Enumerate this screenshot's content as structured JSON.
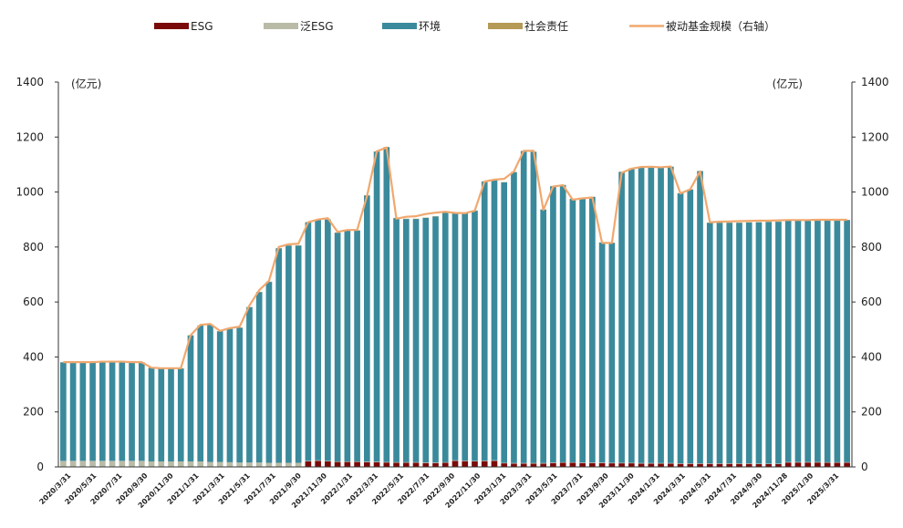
{
  "chart_data": {
    "type": "bar",
    "stacked": true,
    "legend_position": "top",
    "grid": false,
    "colors": {
      "ESG": "#7a0a0a",
      "泛ESG": "#b9bba7",
      "环境": "#3a8a9c",
      "社会责任": "#b59a55",
      "被动基金规模（右轴）": "#f0a86e"
    },
    "y_left": {
      "unit": "(亿元)",
      "range": [
        0,
        1400
      ],
      "ticks": [
        "0",
        "200",
        "400",
        "600",
        "800",
        "1000",
        "1200",
        "1400"
      ]
    },
    "y_right": {
      "unit": "(亿元)",
      "range": [
        0,
        1400
      ],
      "ticks": [
        "0",
        "200",
        "400",
        "600",
        "800",
        "1000",
        "1200",
        "1400"
      ]
    },
    "x_tick_labels": [
      "2020/3/31",
      "2020/5/31",
      "2020/7/31",
      "2020/9/30",
      "2020/11/30",
      "2021/1/31",
      "2021/3/31",
      "2021/5/31",
      "2021/7/31",
      "2021/9/30",
      "2021/11/30",
      "2022/1/31",
      "2022/3/31",
      "2022/5/31",
      "2022/7/31",
      "2022/9/30",
      "2022/11/30",
      "2023/1/31",
      "2023/3/31",
      "2023/5/31",
      "2023/7/31",
      "2023/9/30",
      "2023/11/30",
      "2024/1/31",
      "2024/3/31",
      "2024/5/31",
      "2024/7/31",
      "2024/9/30",
      "2024/11/28",
      "2025/1/30",
      "2025/3/31"
    ],
    "legend": [
      {
        "name": "ESG",
        "kind": "bar",
        "color": "#7a0a0a"
      },
      {
        "name": "泛ESG",
        "kind": "bar",
        "color": "#b9bba7"
      },
      {
        "name": "环境",
        "kind": "bar",
        "color": "#3a8a9c"
      },
      {
        "name": "社会责任",
        "kind": "bar",
        "color": "#b59a55"
      },
      {
        "name": "被动基金规模（右轴）",
        "kind": "line",
        "color": "#f0a86e"
      }
    ],
    "series": [
      {
        "name": "ESG",
        "values": [
          0,
          0,
          0,
          0,
          0,
          0,
          0,
          0,
          0,
          0,
          0,
          0,
          0,
          0,
          0,
          0,
          0,
          0,
          0,
          0,
          0,
          0,
          0,
          0,
          0,
          20,
          22,
          20,
          18,
          18,
          18,
          17,
          17,
          16,
          15,
          15,
          15,
          14,
          14,
          15,
          22,
          21,
          20,
          21,
          22,
          13,
          12,
          12,
          12,
          12,
          14,
          15,
          15,
          14,
          14,
          14,
          13,
          13,
          13,
          12,
          12,
          12,
          12,
          11,
          11,
          11,
          11,
          11,
          11,
          11,
          11,
          10,
          10,
          10,
          16,
          16,
          16,
          16,
          15,
          15,
          15
        ]
      },
      {
        "name": "泛ESG",
        "values": [
          22,
          22,
          22,
          22,
          22,
          22,
          22,
          22,
          22,
          20,
          20,
          20,
          20,
          20,
          20,
          18,
          18,
          17,
          16,
          16,
          16,
          15,
          15,
          15,
          15,
          2,
          2,
          2,
          2,
          2,
          2,
          2,
          2,
          2,
          2,
          2,
          2,
          2,
          2,
          2,
          2,
          2,
          2,
          2,
          2,
          2,
          2,
          2,
          2,
          2,
          2,
          2,
          2,
          2,
          2,
          2,
          2,
          2,
          2,
          2,
          2,
          2,
          2,
          2,
          2,
          2,
          2,
          2,
          2,
          2,
          2,
          2,
          2,
          2,
          2,
          2,
          2,
          2,
          2,
          2,
          2
        ]
      },
      {
        "name": "环境",
        "values": [
          358,
          358,
          358,
          358,
          360,
          360,
          360,
          358,
          358,
          340,
          338,
          338,
          338,
          458,
          494,
          500,
          475,
          485,
          490,
          565,
          620,
          658,
          780,
          790,
          790,
          868,
          875,
          878,
          832,
          840,
          840,
          968,
          1128,
          1145,
          888,
          885,
          885,
          890,
          895,
          910,
          900,
          900,
          910,
          1015,
          1020,
          1020,
          1058,
          1135,
          1132,
          922,
          1005,
          1008,
          958,
          962,
          966,
          800,
          800,
          1058,
          1070,
          1076,
          1076,
          1075,
          1078,
          982,
          996,
          1063,
          875,
          875,
          875,
          875,
          876,
          878,
          879,
          880,
          880,
          880,
          880,
          881,
          881,
          881,
          881
        ]
      },
      {
        "name": "社会责任",
        "values": [
          1,
          1,
          1,
          1,
          1,
          1,
          1,
          1,
          1,
          1,
          1,
          1,
          1,
          1,
          1,
          1,
          1,
          1,
          1,
          1,
          1,
          1,
          1,
          1,
          1,
          1,
          1,
          1,
          1,
          1,
          1,
          1,
          1,
          1,
          1,
          1,
          1,
          1,
          1,
          1,
          1,
          1,
          1,
          1,
          1,
          1,
          1,
          1,
          1,
          1,
          1,
          1,
          1,
          1,
          1,
          1,
          1,
          1,
          1,
          1,
          1,
          1,
          1,
          1,
          1,
          1,
          1,
          1,
          1,
          1,
          1,
          1,
          1,
          1,
          1,
          1,
          1,
          1,
          1,
          1,
          1
        ]
      },
      {
        "name": "被动基金规模（右轴）",
        "values": [
          381,
          381,
          381,
          381,
          383,
          383,
          383,
          381,
          381,
          361,
          359,
          359,
          359,
          479,
          517,
          520,
          495,
          505,
          510,
          587,
          643,
          677,
          800,
          810,
          812,
          890,
          900,
          905,
          855,
          862,
          862,
          985,
          1148,
          1162,
          903,
          910,
          912,
          920,
          925,
          928,
          924,
          923,
          932,
          1038,
          1045,
          1048,
          1075,
          1150,
          1150,
          935,
          1020,
          1025,
          972,
          977,
          980,
          815,
          815,
          1070,
          1085,
          1091,
          1092,
          1090,
          1093,
          995,
          1010,
          1075,
          890,
          892,
          893,
          894,
          895,
          896,
          896,
          897,
          898,
          898,
          898,
          899,
          899,
          899,
          899
        ]
      }
    ]
  }
}
